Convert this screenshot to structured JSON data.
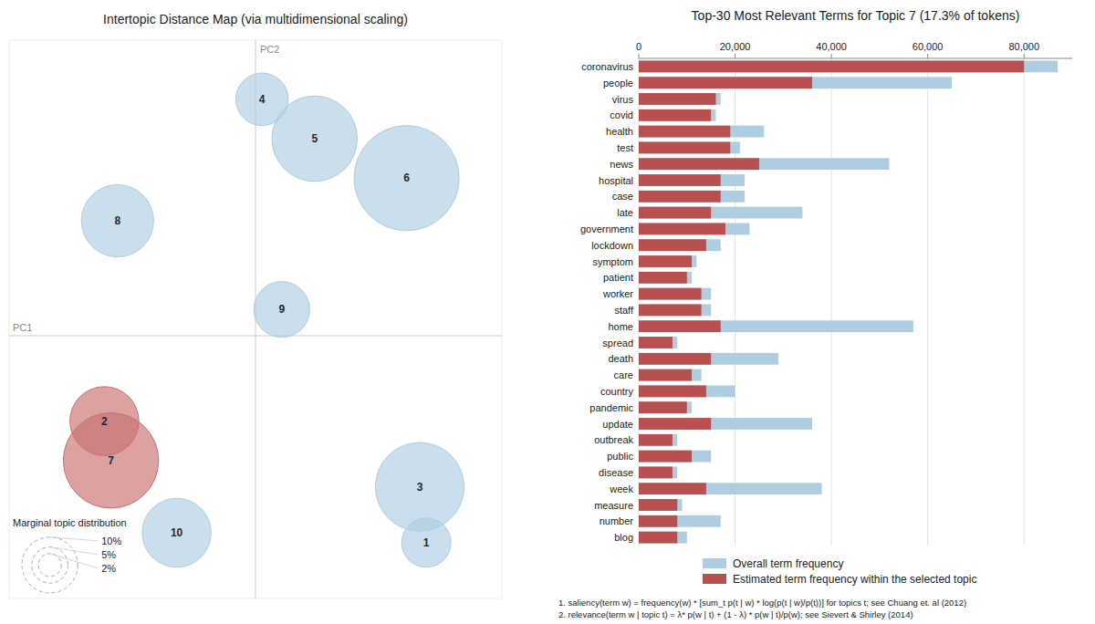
{
  "chart_data": [
    {
      "type": "bubble",
      "title": "Intertopic Distance Map (via multidimensional scaling)",
      "xlabel": "PC1",
      "ylabel": "PC2",
      "labels": [
        4,
        5,
        6,
        8,
        9,
        2,
        7,
        3,
        1,
        10
      ],
      "x": [
        0.02,
        0.18,
        0.46,
        -0.42,
        0.08,
        -0.46,
        -0.44,
        0.5,
        0.52,
        -0.24
      ],
      "values": [
        0.72,
        0.6,
        0.48,
        0.35,
        0.08,
        -0.26,
        -0.38,
        -0.46,
        -0.63,
        -0.6
      ],
      "sizes": [
        0.08,
        0.13,
        0.16,
        0.11,
        0.085,
        0.105,
        0.145,
        0.135,
        0.075,
        0.105
      ],
      "colors": [
        "#aecde1",
        "#aecde1",
        "#aecde1",
        "#aecde1",
        "#aecde1",
        "#c97070",
        "#c97070",
        "#aecde1",
        "#aecde1",
        "#aecde1"
      ],
      "xlim": [
        -0.75,
        0.75
      ],
      "ylim": [
        -0.8,
        0.9
      ],
      "origin": [
        0,
        0
      ],
      "tick_labels": false,
      "grid": false,
      "size_legend": {
        "title": "Marginal topic distribution",
        "sizes": [
          0.035,
          0.055,
          0.085
        ],
        "labels": [
          "2%",
          "5%",
          "10%"
        ]
      }
    },
    {
      "type": "bar",
      "orientation": "horizontal",
      "stacked": false,
      "title": "Top-30 Most Relevant Terms for Topic 7 (17.3% of tokens)",
      "categories": [
        "coronavirus",
        "people",
        "virus",
        "covid",
        "health",
        "test",
        "news",
        "hospital",
        "case",
        "late",
        "government",
        "lockdown",
        "symptom",
        "patient",
        "worker",
        "staff",
        "home",
        "spread",
        "death",
        "care",
        "country",
        "pandemic",
        "update",
        "outbreak",
        "public",
        "disease",
        "week",
        "measure",
        "number",
        "blog"
      ],
      "series": [
        {
          "name": "Overall term frequency",
          "color": "#aecde1",
          "values": [
            87000,
            65000,
            17000,
            16000,
            26000,
            21000,
            52000,
            22000,
            22000,
            34000,
            23000,
            17000,
            12000,
            11000,
            15000,
            15000,
            57000,
            8000,
            29000,
            13000,
            20000,
            11000,
            36000,
            8000,
            15000,
            8000,
            38000,
            9000,
            17000,
            10000
          ]
        },
        {
          "name": "Estimated term frequency within the selected topic",
          "color": "#b85050",
          "values": [
            80000,
            36000,
            16000,
            15000,
            19000,
            19000,
            25000,
            17000,
            17000,
            15000,
            18000,
            14000,
            11000,
            10000,
            13000,
            13000,
            17000,
            7000,
            15000,
            11000,
            14000,
            10000,
            15000,
            7000,
            11000,
            7000,
            14000,
            8000,
            8000,
            8000
          ]
        }
      ],
      "xlim": [
        0,
        90000
      ],
      "xticks": [
        0,
        {
          "value": 20000,
          "label": "20,000"
        },
        {
          "value": 40000,
          "label": "40,000"
        },
        {
          "value": 60000,
          "label": "60,000"
        },
        {
          "value": 80000,
          "label": "80,000"
        }
      ],
      "grid": true,
      "legend": "bottom",
      "footnotes": [
        "1. saliency(term w) = frequency(w) * [sum_t p(t | w) * log(p(t | w)/p(t))] for topics t; see Chuang et. al (2012)",
        "2. relevance(term w | topic t) = λ* p(w | t) + (1 - λ) * p(w | t)/p(w); see Sievert & Shirley (2014)"
      ]
    }
  ]
}
